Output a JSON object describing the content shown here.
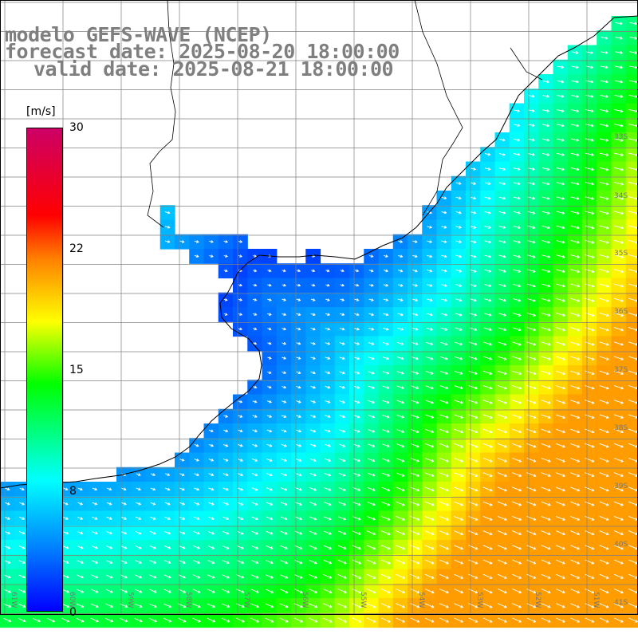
{
  "title": {
    "model": "modelo GEFS-WAVE (NCEP)",
    "forecast": "forecast date: 2025-08-20 18:00:00",
    "valid": "valid date: 2025-08-21 18:00:00"
  },
  "colorbar": {
    "unit": "[m/s]",
    "ticks": [
      "30",
      "22",
      "15",
      "8",
      "0"
    ],
    "tick_values": [
      30,
      22,
      15,
      8,
      0
    ],
    "min": 0,
    "max": 30,
    "colors": [
      "#0000ff",
      "#0080ff",
      "#00ffff",
      "#00ff00",
      "#ffff00",
      "#ff8000",
      "#ff0000",
      "#cc0066"
    ]
  },
  "grid": {
    "lat_labels": [
      "33S",
      "34S",
      "35S",
      "36S",
      "37S",
      "38S",
      "39S",
      "40S",
      "41S"
    ],
    "lon_labels": [
      "61W",
      "60W",
      "59W",
      "58W",
      "57W",
      "56W",
      "55W",
      "54W",
      "53W",
      "52W",
      "51W"
    ]
  },
  "colors": {
    "land": "#ffffff",
    "coastline": "#000000",
    "grid": "#808080",
    "arrows": "#ffffff",
    "title": "#7f7f7f"
  }
}
